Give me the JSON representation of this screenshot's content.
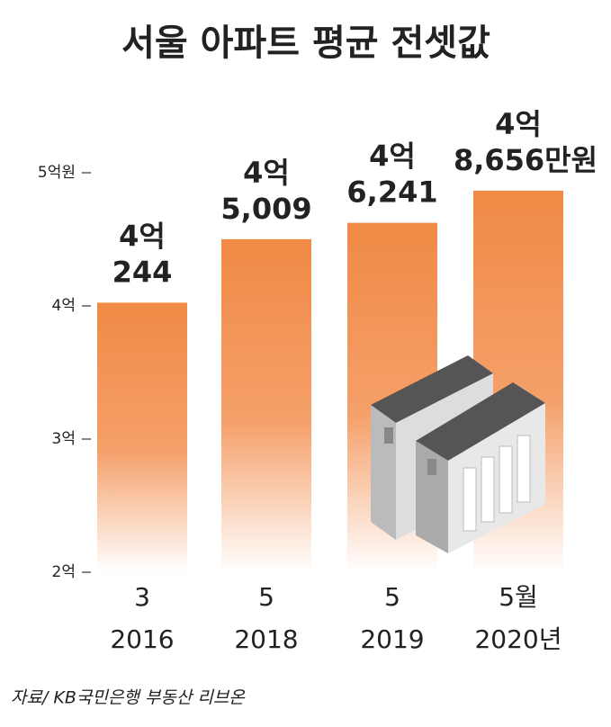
{
  "chart_data": {
    "type": "bar",
    "title": "서울 아파트 평균 전셋값",
    "categories": [
      "2016",
      "2018",
      "2019",
      "2020년"
    ],
    "months": [
      "3",
      "5",
      "5",
      "5월"
    ],
    "values": [
      40244,
      45009,
      46241,
      48656
    ],
    "value_labels": [
      [
        "4억",
        "244"
      ],
      [
        "4억",
        "5,009"
      ],
      [
        "4억",
        "6,241"
      ],
      [
        "4억",
        "8,656만원"
      ]
    ],
    "color": "#f08a45",
    "ylim": [
      20000,
      50000
    ],
    "yticks": [
      {
        "value": 20000,
        "label": "2억"
      },
      {
        "value": 30000,
        "label": "3억"
      },
      {
        "value": 40000,
        "label": "4억"
      },
      {
        "value": 50000,
        "label": "5억원"
      }
    ],
    "source": "자료/ KB국민은행 부동산 리브온"
  }
}
